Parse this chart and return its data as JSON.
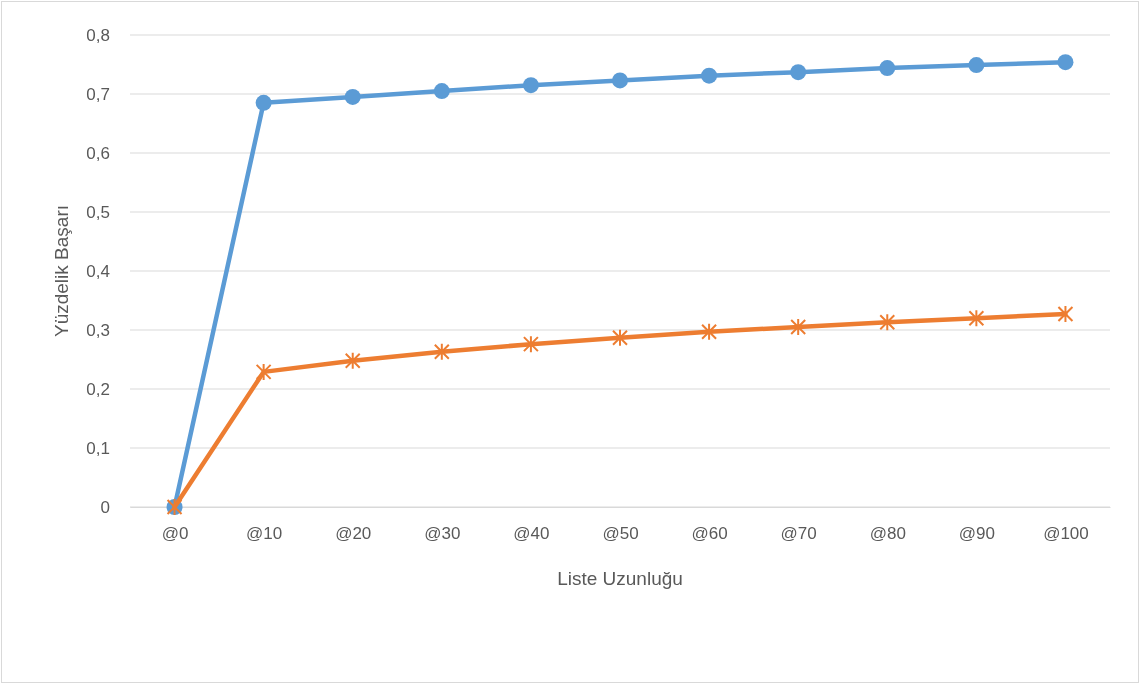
{
  "chart_data": {
    "type": "line",
    "xlabel": "Liste Uzunluğu",
    "ylabel": "Yüzdelik Başarı",
    "categories": [
      "@0",
      "@10",
      "@20",
      "@30",
      "@40",
      "@50",
      "@60",
      "@70",
      "@80",
      "@90",
      "@100"
    ],
    "series": [
      {
        "color": "#5b9bd5",
        "marker": "circle",
        "values": [
          0,
          0.685,
          0.695,
          0.705,
          0.715,
          0.723,
          0.731,
          0.737,
          0.744,
          0.749,
          0.754
        ]
      },
      {
        "color": "#ed7d31",
        "marker": "cross",
        "values": [
          0,
          0.229,
          0.248,
          0.263,
          0.276,
          0.287,
          0.297,
          0.305,
          0.313,
          0.32,
          0.327
        ]
      }
    ],
    "ylim": [
      0,
      0.8
    ],
    "yticks": [
      0,
      {
        "value": 0.1,
        "label": "0,1"
      },
      {
        "value": 0.2,
        "label": "0,2"
      },
      {
        "value": 0.3,
        "label": "0,3"
      },
      {
        "value": 0.4,
        "label": "0,4"
      },
      {
        "value": 0.5,
        "label": "0,5"
      },
      {
        "value": 0.6,
        "label": "0,6"
      },
      {
        "value": 0.7,
        "label": "0,7"
      },
      {
        "value": 0.8,
        "label": "0,8"
      }
    ],
    "grid": "y"
  }
}
